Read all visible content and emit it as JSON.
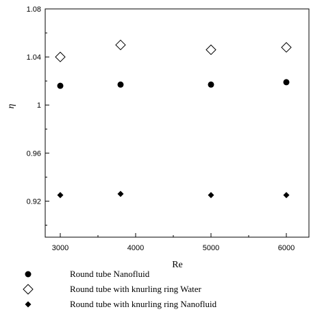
{
  "chart_data": {
    "type": "scatter",
    "xlabel": "Re",
    "ylabel": "η",
    "xlim": [
      2800,
      6300
    ],
    "ylim": [
      0.89,
      1.08
    ],
    "xticks": [
      3000,
      4000,
      5000,
      6000
    ],
    "xtick_labels": [
      "3000",
      "4000",
      "5000",
      "6000"
    ],
    "yticks": [
      0.92,
      0.96,
      1.0,
      1.04,
      1.08
    ],
    "ytick_labels": [
      "0.92",
      "0.96",
      "1",
      "1.04",
      "1.08"
    ],
    "grid": false,
    "legend_position": "below plot",
    "series": [
      {
        "name": "Round tube Nanofluid",
        "marker": "filled-circle",
        "color": "#000000",
        "x": [
          3000,
          3800,
          5000,
          6000
        ],
        "y": [
          1.016,
          1.017,
          1.017,
          1.019
        ]
      },
      {
        "name": "Round tube with knurling ring Water",
        "marker": "open-diamond",
        "color": "#000000",
        "x": [
          3000,
          3800,
          5000,
          6000
        ],
        "y": [
          1.04,
          1.05,
          1.046,
          1.048
        ]
      },
      {
        "name": "Round tube with knurling ring Nanofluid",
        "marker": "filled-diamond",
        "color": "#000000",
        "x": [
          3000,
          3800,
          5000,
          6000
        ],
        "y": [
          0.925,
          0.926,
          0.925,
          0.925
        ]
      }
    ]
  }
}
